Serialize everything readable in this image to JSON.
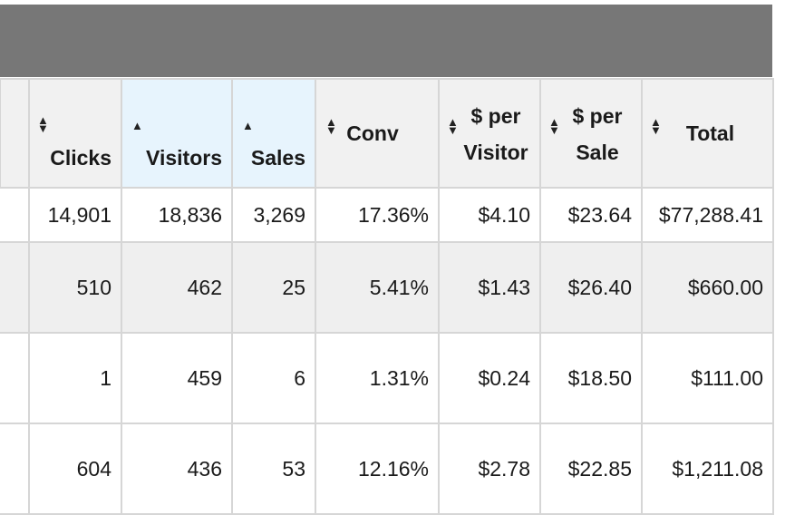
{
  "columns": [
    {
      "key": "stub",
      "label": ""
    },
    {
      "key": "clicks",
      "label": "Clicks",
      "sort_icon": "sort-both-icon"
    },
    {
      "key": "visitors",
      "label": "Visitors",
      "sort_icon": "sort-up-icon"
    },
    {
      "key": "sales",
      "label": "Sales",
      "sort_icon": "sort-up-icon"
    },
    {
      "key": "conv",
      "label": "Conv",
      "sort_icon": "sort-both-icon"
    },
    {
      "key": "per_visitor",
      "label_line1": "$ per",
      "label_line2": "Visitor",
      "sort_icon": "sort-both-icon"
    },
    {
      "key": "per_sale",
      "label_line1": "$ per",
      "label_line2": "Sale",
      "sort_icon": "sort-both-icon"
    },
    {
      "key": "total",
      "label": "Total",
      "sort_icon": "sort-both-icon"
    }
  ],
  "rows": [
    {
      "clicks": "14,901",
      "visitors": "18,836",
      "sales": "3,269",
      "conv": "17.36%",
      "per_visitor": "$4.10",
      "per_sale": "$23.64",
      "total": "$77,288.41"
    },
    {
      "clicks": "510",
      "visitors": "462",
      "sales": "25",
      "conv": "5.41%",
      "per_visitor": "$1.43",
      "per_sale": "$26.40",
      "total": "$660.00"
    },
    {
      "clicks": "1",
      "visitors": "459",
      "sales": "6",
      "conv": "1.31%",
      "per_visitor": "$0.24",
      "per_sale": "$18.50",
      "total": "$111.00"
    },
    {
      "clicks": "604",
      "visitors": "436",
      "sales": "53",
      "conv": "12.16%",
      "per_visitor": "$2.78",
      "per_sale": "$22.85",
      "total": "$1,211.08"
    }
  ],
  "colors": {
    "header_bar": "#777777",
    "sorted_header": "#e7f4fd",
    "shaded_row": "#efefef",
    "grid_line": "#d6d6d6"
  }
}
